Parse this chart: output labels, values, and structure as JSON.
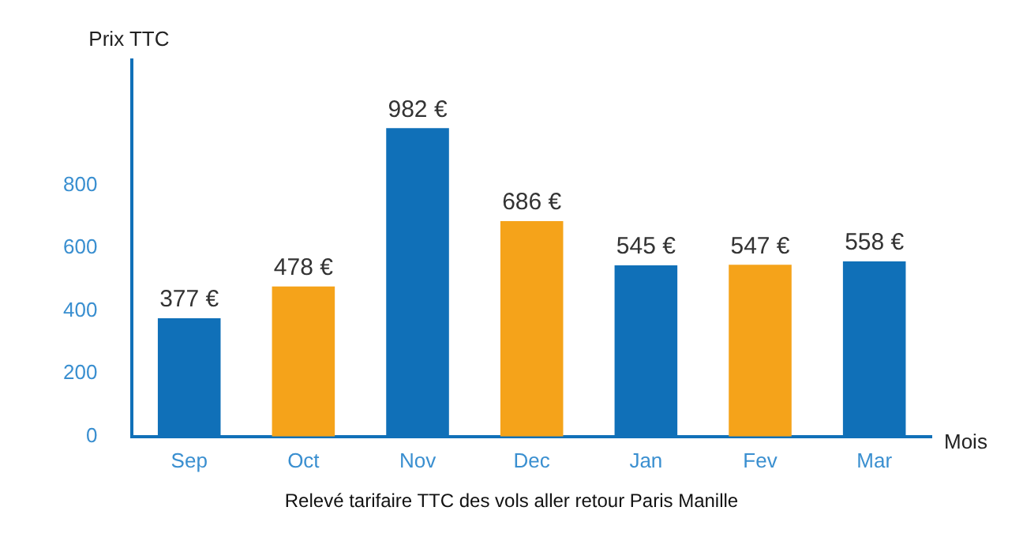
{
  "chart_data": {
    "type": "bar",
    "ylabel": "Prix TTC",
    "xlabel": "Mois",
    "categories": [
      "Sep",
      "Oct",
      "Nov",
      "Dec",
      "Jan",
      "Fev",
      "Mar"
    ],
    "values": [
      377,
      478,
      982,
      686,
      545,
      547,
      558
    ],
    "colors": [
      "#1070b8",
      "#f5a31a",
      "#1070b8",
      "#f5a31a",
      "#1070b8",
      "#f5a31a",
      "#1070b8"
    ],
    "value_labels": [
      "377 €",
      "478 €",
      "982 €",
      "686 €",
      "545 €",
      "547 €",
      "558 €"
    ],
    "ylim": [
      0,
      1200
    ],
    "yticks": [
      0,
      200,
      400,
      600,
      800
    ],
    "grid": false,
    "legend": false,
    "annotations": [
      "Relevé tarifaire TTC des vols aller retour Paris Manille"
    ]
  }
}
